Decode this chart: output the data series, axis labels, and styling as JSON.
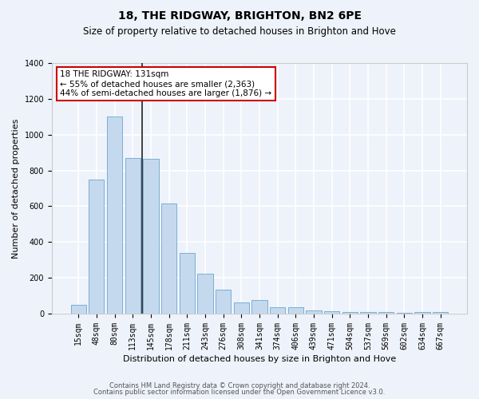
{
  "title": "18, THE RIDGWAY, BRIGHTON, BN2 6PE",
  "subtitle": "Size of property relative to detached houses in Brighton and Hove",
  "xlabel": "Distribution of detached houses by size in Brighton and Hove",
  "ylabel": "Number of detached properties",
  "footer1": "Contains HM Land Registry data © Crown copyright and database right 2024.",
  "footer2": "Contains public sector information licensed under the Open Government Licence v3.0.",
  "bar_labels": [
    "15sqm",
    "48sqm",
    "80sqm",
    "113sqm",
    "145sqm",
    "178sqm",
    "211sqm",
    "243sqm",
    "276sqm",
    "308sqm",
    "341sqm",
    "374sqm",
    "406sqm",
    "439sqm",
    "471sqm",
    "504sqm",
    "537sqm",
    "569sqm",
    "602sqm",
    "634sqm",
    "667sqm"
  ],
  "bar_values": [
    50,
    750,
    1100,
    870,
    865,
    615,
    340,
    225,
    135,
    65,
    75,
    35,
    35,
    20,
    15,
    10,
    10,
    10,
    5,
    10,
    10
  ],
  "bar_color": "#c5d9ee",
  "bar_edge_color": "#7aafd4",
  "background_color": "#eef2fa",
  "grid_color": "#ffffff",
  "vline_color": "#222222",
  "annotation_text": "18 THE RIDGWAY: 131sqm\n← 55% of detached houses are smaller (2,363)\n44% of semi-detached houses are larger (1,876) →",
  "annotation_box_color": "#ffffff",
  "annotation_border_color": "#cc0000",
  "ylim": [
    0,
    1400
  ],
  "yticks": [
    0,
    200,
    400,
    600,
    800,
    1000,
    1200,
    1400
  ],
  "title_fontsize": 10,
  "subtitle_fontsize": 8.5,
  "ylabel_fontsize": 8,
  "xlabel_fontsize": 8,
  "tick_fontsize": 7,
  "footer_fontsize": 6,
  "annotation_fontsize": 7.5
}
